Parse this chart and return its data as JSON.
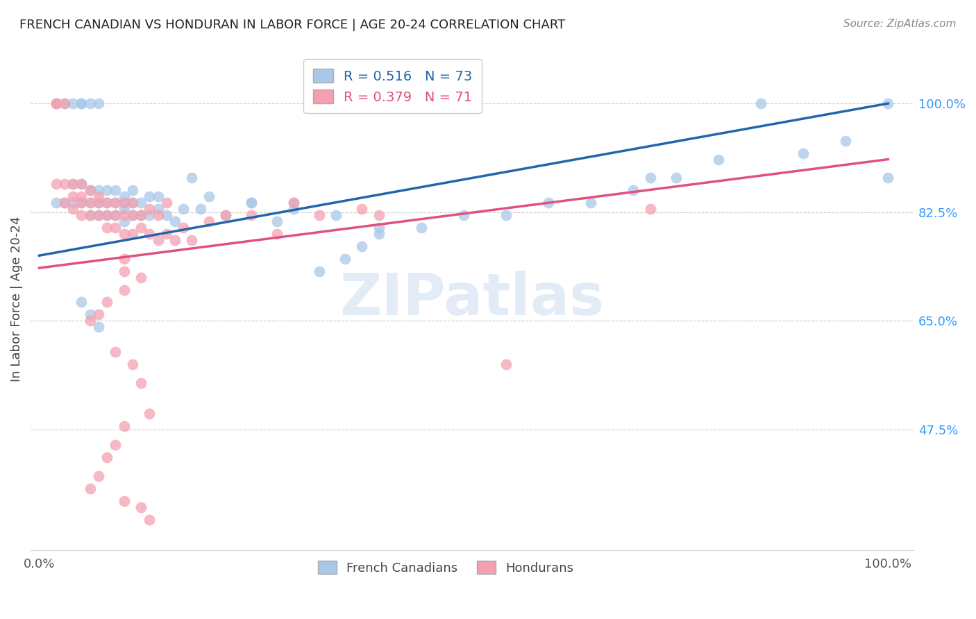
{
  "title": "FRENCH CANADIAN VS HONDURAN IN LABOR FORCE | AGE 20-24 CORRELATION CHART",
  "source": "Source: ZipAtlas.com",
  "ylabel": "In Labor Force | Age 20-24",
  "xlim": [
    -0.01,
    1.03
  ],
  "ylim": [
    0.28,
    1.09
  ],
  "ytick_positions": [
    0.475,
    0.65,
    0.825,
    1.0
  ],
  "ytick_labels": [
    "47.5%",
    "65.0%",
    "82.5%",
    "100.0%"
  ],
  "grid_color": "#cccccc",
  "background_color": "#ffffff",
  "blue_scatter_color": "#a8c8e8",
  "pink_scatter_color": "#f4a0b0",
  "blue_line_color": "#2166ac",
  "pink_line_color": "#e05080",
  "R_blue": 0.516,
  "N_blue": 73,
  "R_pink": 0.379,
  "N_pink": 71,
  "legend_labels": [
    "French Canadians",
    "Hondurans"
  ],
  "watermark": "ZIPatlas",
  "blue_line_x0": 0.0,
  "blue_line_y0": 0.755,
  "blue_line_x1": 1.0,
  "blue_line_y1": 1.0,
  "pink_line_x0": 0.0,
  "pink_line_y0": 0.735,
  "pink_line_x1": 1.0,
  "pink_line_y1": 0.91,
  "blue_x": [
    0.02,
    0.02,
    0.03,
    0.03,
    0.04,
    0.04,
    0.04,
    0.05,
    0.05,
    0.05,
    0.05,
    0.06,
    0.06,
    0.06,
    0.06,
    0.07,
    0.07,
    0.07,
    0.07,
    0.08,
    0.08,
    0.08,
    0.09,
    0.09,
    0.09,
    0.1,
    0.1,
    0.1,
    0.1,
    0.11,
    0.11,
    0.11,
    0.12,
    0.12,
    0.13,
    0.13,
    0.14,
    0.14,
    0.15,
    0.16,
    0.17,
    0.18,
    0.19,
    0.2,
    0.22,
    0.25,
    0.28,
    0.3,
    0.33,
    0.36,
    0.38,
    0.4,
    0.25,
    0.3,
    0.35,
    0.4,
    0.45,
    0.5,
    0.55,
    0.6,
    0.65,
    0.7,
    0.72,
    0.75,
    0.8,
    0.85,
    0.9,
    0.95,
    1.0,
    1.0,
    0.05,
    0.06,
    0.07
  ],
  "blue_y": [
    1.0,
    0.84,
    0.84,
    1.0,
    1.0,
    0.84,
    0.87,
    1.0,
    1.0,
    0.84,
    0.87,
    1.0,
    0.84,
    0.86,
    0.82,
    1.0,
    0.84,
    0.82,
    0.86,
    0.84,
    0.82,
    0.86,
    0.84,
    0.82,
    0.86,
    0.83,
    0.85,
    0.81,
    0.84,
    0.82,
    0.84,
    0.86,
    0.82,
    0.84,
    0.82,
    0.85,
    0.83,
    0.85,
    0.82,
    0.81,
    0.83,
    0.88,
    0.83,
    0.85,
    0.82,
    0.84,
    0.81,
    0.83,
    0.73,
    0.75,
    0.77,
    0.79,
    0.84,
    0.84,
    0.82,
    0.8,
    0.8,
    0.82,
    0.82,
    0.84,
    0.84,
    0.86,
    0.88,
    0.88,
    0.91,
    1.0,
    0.92,
    0.94,
    1.0,
    0.88,
    0.68,
    0.66,
    0.64
  ],
  "pink_x": [
    0.02,
    0.02,
    0.02,
    0.03,
    0.03,
    0.03,
    0.04,
    0.04,
    0.04,
    0.05,
    0.05,
    0.05,
    0.05,
    0.06,
    0.06,
    0.06,
    0.07,
    0.07,
    0.07,
    0.08,
    0.08,
    0.08,
    0.09,
    0.09,
    0.09,
    0.1,
    0.1,
    0.1,
    0.11,
    0.11,
    0.11,
    0.12,
    0.12,
    0.13,
    0.13,
    0.14,
    0.14,
    0.15,
    0.15,
    0.16,
    0.17,
    0.18,
    0.2,
    0.22,
    0.25,
    0.28,
    0.3,
    0.33,
    0.38,
    0.4,
    0.1,
    0.08,
    0.06,
    0.07,
    0.09,
    0.1,
    0.11,
    0.12,
    0.12,
    0.13,
    0.1,
    0.09,
    0.08,
    0.07,
    0.06,
    0.12,
    0.13,
    0.55,
    0.72,
    0.1,
    0.1
  ],
  "pink_y": [
    0.87,
    1.0,
    1.0,
    0.87,
    0.84,
    1.0,
    0.85,
    0.83,
    0.87,
    0.85,
    0.82,
    0.84,
    0.87,
    0.82,
    0.84,
    0.86,
    0.82,
    0.84,
    0.85,
    0.8,
    0.82,
    0.84,
    0.8,
    0.82,
    0.84,
    0.79,
    0.82,
    0.84,
    0.79,
    0.82,
    0.84,
    0.8,
    0.82,
    0.79,
    0.83,
    0.78,
    0.82,
    0.79,
    0.84,
    0.78,
    0.8,
    0.78,
    0.81,
    0.82,
    0.82,
    0.79,
    0.84,
    0.82,
    0.83,
    0.82,
    0.73,
    0.68,
    0.65,
    0.66,
    0.6,
    0.7,
    0.58,
    0.55,
    0.72,
    0.5,
    0.48,
    0.45,
    0.43,
    0.4,
    0.38,
    0.35,
    0.33,
    0.58,
    0.83,
    0.75,
    0.36
  ]
}
